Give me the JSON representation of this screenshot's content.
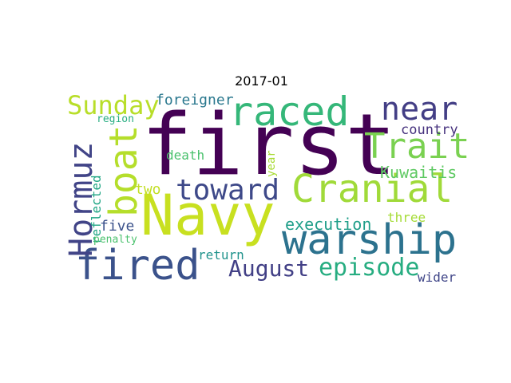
{
  "title": "2017-01",
  "words": [
    {
      "id": "first",
      "text": "first",
      "color": "#440154"
    },
    {
      "id": "navy",
      "text": "Navy",
      "color": "#c8e020"
    },
    {
      "id": "warship",
      "text": "warship",
      "color": "#2c728e"
    },
    {
      "id": "fired",
      "text": "fired",
      "color": "#3b528b"
    },
    {
      "id": "raced",
      "text": "raced",
      "color": "#35b779"
    },
    {
      "id": "cranial",
      "text": "Cranial",
      "color": "#a0da39"
    },
    {
      "id": "near",
      "text": "near",
      "color": "#433e85"
    },
    {
      "id": "boat",
      "text": "boat",
      "color": "#b5de2b"
    },
    {
      "id": "trait",
      "text": "Trait",
      "color": "#7ad151"
    },
    {
      "id": "toward",
      "text": "toward",
      "color": "#3e4989"
    },
    {
      "id": "hormuz",
      "text": "Hormuz",
      "color": "#414487"
    },
    {
      "id": "sunday",
      "text": "Sunday",
      "color": "#b8de29"
    },
    {
      "id": "episode",
      "text": "episode",
      "color": "#27ad81"
    },
    {
      "id": "august",
      "text": "August",
      "color": "#424086"
    },
    {
      "id": "execution",
      "text": "execution",
      "color": "#1f9e89"
    },
    {
      "id": "kuwaitis",
      "text": "Kuwaitis",
      "color": "#5ec962"
    },
    {
      "id": "country",
      "text": "country",
      "color": "#46327e"
    },
    {
      "id": "foreigner",
      "text": "foreigner",
      "color": "#2a788e"
    },
    {
      "id": "two",
      "text": "two",
      "color": "#c2df23"
    },
    {
      "id": "five",
      "text": "five",
      "color": "#3b528b"
    },
    {
      "id": "death",
      "text": "death",
      "color": "#4ac16d"
    },
    {
      "id": "reflected",
      "text": "reflected",
      "color": "#21a685"
    },
    {
      "id": "return",
      "text": "return",
      "color": "#20938c"
    },
    {
      "id": "three",
      "text": "three",
      "color": "#a5db36"
    },
    {
      "id": "wider",
      "text": "wider",
      "color": "#404688"
    },
    {
      "id": "region",
      "text": "region",
      "color": "#27ad81"
    },
    {
      "id": "year",
      "text": "year",
      "color": "#a8db34"
    },
    {
      "id": "penalty",
      "text": "penalty",
      "color": "#4ac16d"
    }
  ]
}
